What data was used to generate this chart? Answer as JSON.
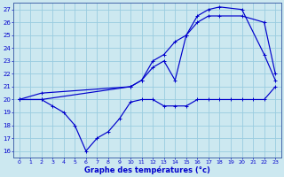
{
  "title": "Graphe des températures (°c)",
  "bg_color": "#cce8f0",
  "grid_color": "#99cce0",
  "line_color": "#0000cc",
  "ylim": [
    15.5,
    27.5
  ],
  "xlim": [
    -0.5,
    23.5
  ],
  "yticks": [
    16,
    17,
    18,
    19,
    20,
    21,
    22,
    23,
    24,
    25,
    26,
    27
  ],
  "xticks": [
    0,
    1,
    2,
    3,
    4,
    5,
    6,
    7,
    8,
    9,
    10,
    11,
    12,
    13,
    14,
    15,
    16,
    17,
    18,
    19,
    20,
    21,
    22,
    23
  ],
  "line1_x": [
    0,
    2,
    3,
    4,
    5,
    6,
    7,
    8,
    9,
    10,
    11,
    12,
    13,
    14,
    15,
    16,
    17,
    18,
    19,
    20,
    21,
    22,
    23
  ],
  "line1_y": [
    20,
    20,
    19.5,
    19,
    18,
    16,
    17,
    17.5,
    18.5,
    19.8,
    20,
    20,
    19.5,
    19.5,
    19.5,
    20,
    20,
    20,
    20,
    20,
    20,
    20,
    21
  ],
  "line2_x": [
    0,
    2,
    10,
    11,
    12,
    13,
    14,
    15,
    16,
    17,
    18,
    20,
    22,
    23
  ],
  "line2_y": [
    20,
    20,
    21,
    21.5,
    22.5,
    23,
    21.5,
    25,
    26,
    26.5,
    26.5,
    26.5,
    26,
    22
  ],
  "line3_x": [
    0,
    2,
    10,
    11,
    12,
    13,
    14,
    15,
    16,
    17,
    18,
    20,
    22,
    23
  ],
  "line3_y": [
    20,
    20.5,
    21,
    21.5,
    23,
    23.5,
    24.5,
    25,
    26.5,
    27,
    27.2,
    27,
    23.5,
    21.5
  ]
}
